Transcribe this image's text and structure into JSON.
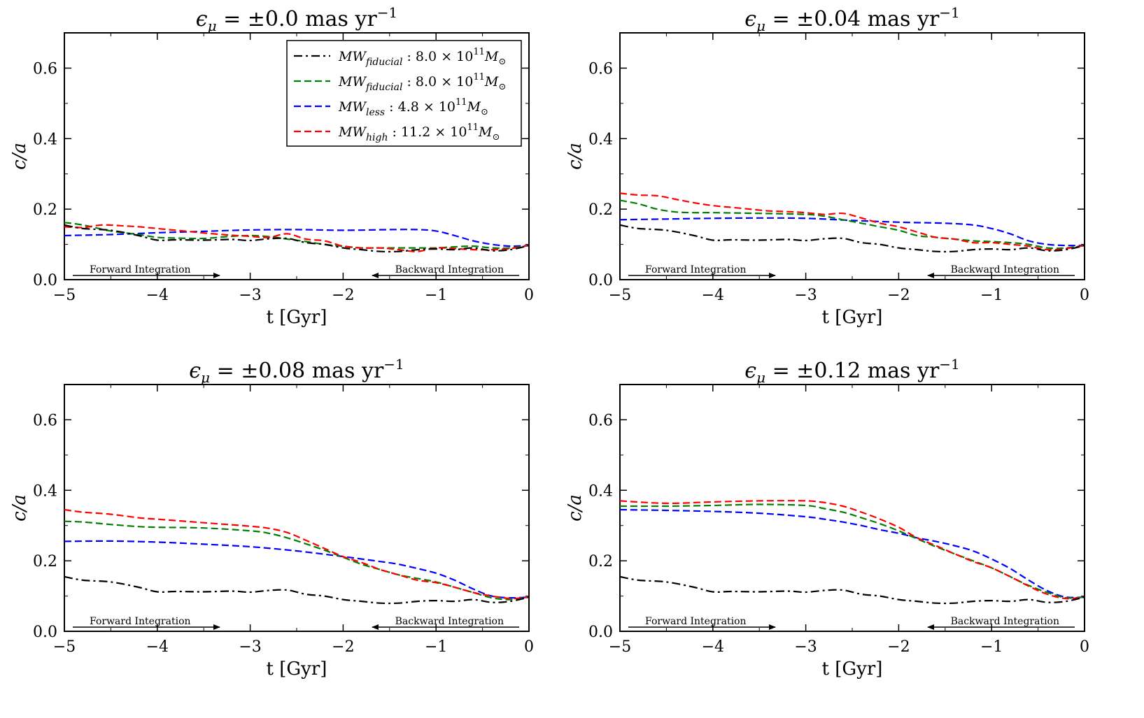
{
  "figure": {
    "arrows": {
      "forward": "Forward Integration",
      "backward": "Backward Integration"
    },
    "legend": [
      {
        "name": "MW",
        "sub": "fiducial",
        "rest": " : 8.0 × 10",
        "exp": "11",
        "tail": "M",
        "sun": "⊙",
        "color": "#000000",
        "style": "dashdot"
      },
      {
        "name": "MW",
        "sub": "fiducial",
        "rest": " : 8.0 × 10",
        "exp": "11",
        "tail": "M",
        "sun": "⊙",
        "color": "#008000",
        "style": "dashed"
      },
      {
        "name": "MW",
        "sub": "less",
        "rest": " : 4.8 × 10",
        "exp": "11",
        "tail": "M",
        "sun": "⊙",
        "color": "#0000ff",
        "style": "dashed"
      },
      {
        "name": "MW",
        "sub": "high",
        "rest": " : 11.2 × 10",
        "exp": "11",
        "tail": "M",
        "sun": "⊙",
        "color": "#ff0000",
        "style": "dashed"
      }
    ]
  },
  "chart_data": [
    {
      "type": "line",
      "title": {
        "prefix": "ϵ",
        "sub": "μ",
        "value": " = ±0.0 mas yr",
        "exp": "−1"
      },
      "xlabel": "t [Gyr]",
      "ylabel": "c/a",
      "xlim": [
        -5,
        0
      ],
      "ylim": [
        0,
        0.7
      ],
      "xticks": [
        "−5",
        "−4",
        "−3",
        "−2",
        "−1",
        "0"
      ],
      "yticks": [
        "0.0",
        "0.2",
        "0.4",
        "0.6"
      ],
      "legend": "top-right",
      "series": [
        {
          "color": "#000000",
          "style": "dashdot",
          "x": [
            -5,
            -4.8,
            -4.5,
            -4.2,
            -4,
            -3.8,
            -3.5,
            -3.2,
            -3,
            -2.8,
            -2.6,
            -2.4,
            -2.2,
            -2,
            -1.8,
            -1.6,
            -1.4,
            -1.2,
            -1,
            -0.8,
            -0.6,
            -0.4,
            -0.2,
            0
          ],
          "y": [
            0.155,
            0.145,
            0.14,
            0.125,
            0.112,
            0.113,
            0.112,
            0.114,
            0.111,
            0.116,
            0.117,
            0.105,
            0.1,
            0.09,
            0.085,
            0.08,
            0.08,
            0.085,
            0.087,
            0.085,
            0.09,
            0.082,
            0.085,
            0.097
          ]
        },
        {
          "color": "#008000",
          "style": "dashed",
          "x": [
            -5,
            -4.8,
            -4.5,
            -4.2,
            -4,
            -3.8,
            -3.5,
            -3.2,
            -3,
            -2.8,
            -2.6,
            -2.4,
            -2.2,
            -2,
            -1.8,
            -1.6,
            -1.4,
            -1.2,
            -1,
            -0.8,
            -0.6,
            -0.4,
            -0.2,
            0
          ],
          "y": [
            0.162,
            0.155,
            0.138,
            0.128,
            0.12,
            0.118,
            0.117,
            0.123,
            0.125,
            0.122,
            0.115,
            0.108,
            0.1,
            0.095,
            0.09,
            0.09,
            0.09,
            0.09,
            0.09,
            0.093,
            0.095,
            0.09,
            0.09,
            0.097
          ]
        },
        {
          "color": "#0000ff",
          "style": "dashed",
          "x": [
            -5,
            -4.5,
            -4,
            -3.5,
            -3,
            -2.5,
            -2,
            -1.5,
            -1.2,
            -1,
            -0.8,
            -0.6,
            -0.4,
            -0.2,
            0
          ],
          "y": [
            0.125,
            0.128,
            0.133,
            0.137,
            0.141,
            0.142,
            0.14,
            0.142,
            0.142,
            0.138,
            0.125,
            0.11,
            0.1,
            0.095,
            0.097
          ]
        },
        {
          "color": "#ff0000",
          "style": "dashed",
          "x": [
            -5,
            -4.8,
            -4.6,
            -4.4,
            -4.2,
            -4,
            -3.8,
            -3.6,
            -3.4,
            -3.2,
            -3,
            -2.8,
            -2.6,
            -2.4,
            -2.2,
            -2,
            -1.8,
            -1.6,
            -1.4,
            -1.2,
            -1,
            -0.8,
            -0.6,
            -0.4,
            -0.2,
            0
          ],
          "y": [
            0.15,
            0.148,
            0.155,
            0.153,
            0.15,
            0.145,
            0.14,
            0.135,
            0.13,
            0.126,
            0.123,
            0.12,
            0.13,
            0.115,
            0.11,
            0.095,
            0.09,
            0.09,
            0.085,
            0.08,
            0.09,
            0.088,
            0.085,
            0.085,
            0.088,
            0.097
          ]
        }
      ]
    },
    {
      "type": "line",
      "title": {
        "prefix": "ϵ",
        "sub": "μ",
        "value": " = ±0.04 mas yr",
        "exp": "−1"
      },
      "xlabel": "t [Gyr]",
      "ylabel": "c/a",
      "xlim": [
        -5,
        0
      ],
      "ylim": [
        0,
        0.7
      ],
      "xticks": [
        "−5",
        "−4",
        "−3",
        "−2",
        "−1",
        "0"
      ],
      "yticks": [
        "0.0",
        "0.2",
        "0.4",
        "0.6"
      ],
      "series": [
        {
          "color": "#000000",
          "style": "dashdot",
          "x": [
            -5,
            -4.8,
            -4.5,
            -4.2,
            -4,
            -3.8,
            -3.5,
            -3.2,
            -3,
            -2.8,
            -2.6,
            -2.4,
            -2.2,
            -2,
            -1.8,
            -1.6,
            -1.4,
            -1.2,
            -1,
            -0.8,
            -0.6,
            -0.4,
            -0.2,
            0
          ],
          "y": [
            0.155,
            0.145,
            0.14,
            0.125,
            0.112,
            0.113,
            0.112,
            0.114,
            0.111,
            0.116,
            0.117,
            0.105,
            0.1,
            0.09,
            0.085,
            0.08,
            0.08,
            0.085,
            0.087,
            0.085,
            0.09,
            0.082,
            0.085,
            0.097
          ]
        },
        {
          "color": "#008000",
          "style": "dashed",
          "x": [
            -5,
            -4.8,
            -4.6,
            -4.4,
            -4.2,
            -4,
            -3.5,
            -3,
            -2.8,
            -2.6,
            -2.4,
            -2.2,
            -2,
            -1.8,
            -1.6,
            -1.4,
            -1.2,
            -1,
            -0.8,
            -0.6,
            -0.4,
            -0.2,
            0
          ],
          "y": [
            0.225,
            0.215,
            0.2,
            0.192,
            0.19,
            0.19,
            0.188,
            0.185,
            0.18,
            0.17,
            0.16,
            0.15,
            0.14,
            0.125,
            0.12,
            0.115,
            0.11,
            0.108,
            0.105,
            0.1,
            0.09,
            0.09,
            0.097
          ]
        },
        {
          "color": "#0000ff",
          "style": "dashed",
          "x": [
            -5,
            -4.5,
            -4,
            -3.5,
            -3,
            -2.5,
            -2,
            -1.5,
            -1.2,
            -1,
            -0.8,
            -0.6,
            -0.4,
            -0.2,
            0
          ],
          "y": [
            0.17,
            0.172,
            0.174,
            0.175,
            0.174,
            0.168,
            0.163,
            0.16,
            0.155,
            0.145,
            0.13,
            0.11,
            0.1,
            0.097,
            0.097
          ]
        },
        {
          "color": "#ff0000",
          "style": "dashed",
          "x": [
            -5,
            -4.8,
            -4.6,
            -4.4,
            -4.2,
            -4,
            -3.8,
            -3.6,
            -3.4,
            -3.2,
            -3,
            -2.8,
            -2.6,
            -2.4,
            -2.2,
            -2,
            -1.8,
            -1.6,
            -1.4,
            -1.2,
            -1,
            -0.8,
            -0.6,
            -0.4,
            -0.2,
            0
          ],
          "y": [
            0.245,
            0.24,
            0.238,
            0.228,
            0.218,
            0.21,
            0.205,
            0.2,
            0.195,
            0.193,
            0.19,
            0.185,
            0.188,
            0.175,
            0.16,
            0.15,
            0.135,
            0.12,
            0.115,
            0.105,
            0.105,
            0.1,
            0.095,
            0.085,
            0.088,
            0.097
          ]
        }
      ]
    },
    {
      "type": "line",
      "title": {
        "prefix": "ϵ",
        "sub": "μ",
        "value": " = ±0.08 mas yr",
        "exp": "−1"
      },
      "xlabel": "t [Gyr]",
      "ylabel": "c/a",
      "xlim": [
        -5,
        0
      ],
      "ylim": [
        0,
        0.7
      ],
      "xticks": [
        "−5",
        "−4",
        "−3",
        "−2",
        "−1",
        "0"
      ],
      "yticks": [
        "0.0",
        "0.2",
        "0.4",
        "0.6"
      ],
      "series": [
        {
          "color": "#000000",
          "style": "dashdot",
          "x": [
            -5,
            -4.8,
            -4.5,
            -4.2,
            -4,
            -3.8,
            -3.5,
            -3.2,
            -3,
            -2.8,
            -2.6,
            -2.4,
            -2.2,
            -2,
            -1.8,
            -1.6,
            -1.4,
            -1.2,
            -1,
            -0.8,
            -0.6,
            -0.4,
            -0.2,
            0
          ],
          "y": [
            0.155,
            0.145,
            0.14,
            0.125,
            0.112,
            0.113,
            0.112,
            0.114,
            0.111,
            0.116,
            0.117,
            0.105,
            0.1,
            0.09,
            0.085,
            0.08,
            0.08,
            0.085,
            0.087,
            0.085,
            0.09,
            0.082,
            0.085,
            0.097
          ]
        },
        {
          "color": "#008000",
          "style": "dashed",
          "x": [
            -5,
            -4.8,
            -4.5,
            -4.2,
            -4,
            -3.5,
            -3,
            -2.8,
            -2.6,
            -2.4,
            -2.2,
            -2,
            -1.8,
            -1.6,
            -1.4,
            -1.2,
            -1,
            -0.8,
            -0.6,
            -0.4,
            -0.2,
            0
          ],
          "y": [
            0.312,
            0.31,
            0.303,
            0.297,
            0.295,
            0.293,
            0.285,
            0.278,
            0.265,
            0.248,
            0.23,
            0.21,
            0.19,
            0.175,
            0.16,
            0.15,
            0.14,
            0.125,
            0.11,
            0.095,
            0.09,
            0.097
          ]
        },
        {
          "color": "#0000ff",
          "style": "dashed",
          "x": [
            -5,
            -4.5,
            -4,
            -3.5,
            -3,
            -2.5,
            -2,
            -1.8,
            -1.6,
            -1.4,
            -1.2,
            -1,
            -0.8,
            -0.6,
            -0.4,
            -0.2,
            0
          ],
          "y": [
            0.255,
            0.256,
            0.253,
            0.247,
            0.24,
            0.228,
            0.212,
            0.205,
            0.198,
            0.19,
            0.178,
            0.165,
            0.145,
            0.12,
            0.1,
            0.095,
            0.097
          ]
        },
        {
          "color": "#ff0000",
          "style": "dashed",
          "x": [
            -5,
            -4.8,
            -4.5,
            -4.2,
            -4,
            -3.5,
            -3,
            -2.8,
            -2.6,
            -2.4,
            -2.2,
            -2,
            -1.8,
            -1.6,
            -1.4,
            -1.2,
            -1,
            -0.8,
            -0.6,
            -0.4,
            -0.2,
            0
          ],
          "y": [
            0.345,
            0.338,
            0.332,
            0.322,
            0.318,
            0.308,
            0.298,
            0.292,
            0.28,
            0.258,
            0.235,
            0.212,
            0.195,
            0.175,
            0.16,
            0.145,
            0.138,
            0.125,
            0.11,
            0.1,
            0.093,
            0.097
          ]
        }
      ]
    },
    {
      "type": "line",
      "title": {
        "prefix": "ϵ",
        "sub": "μ",
        "value": " = ±0.12 mas yr",
        "exp": "−1"
      },
      "xlabel": "t [Gyr]",
      "ylabel": "c/a",
      "xlim": [
        -5,
        0
      ],
      "ylim": [
        0,
        0.7
      ],
      "xticks": [
        "−5",
        "−4",
        "−3",
        "−2",
        "−1",
        "0"
      ],
      "yticks": [
        "0.0",
        "0.2",
        "0.4",
        "0.6"
      ],
      "series": [
        {
          "color": "#000000",
          "style": "dashdot",
          "x": [
            -5,
            -4.8,
            -4.5,
            -4.2,
            -4,
            -3.8,
            -3.5,
            -3.2,
            -3,
            -2.8,
            -2.6,
            -2.4,
            -2.2,
            -2,
            -1.8,
            -1.6,
            -1.4,
            -1.2,
            -1,
            -0.8,
            -0.6,
            -0.4,
            -0.2,
            0
          ],
          "y": [
            0.155,
            0.145,
            0.14,
            0.125,
            0.112,
            0.113,
            0.112,
            0.114,
            0.111,
            0.116,
            0.117,
            0.105,
            0.1,
            0.09,
            0.085,
            0.08,
            0.08,
            0.085,
            0.087,
            0.085,
            0.09,
            0.082,
            0.085,
            0.097
          ]
        },
        {
          "color": "#008000",
          "style": "dashed",
          "x": [
            -5,
            -4.5,
            -4,
            -3.5,
            -3,
            -2.8,
            -2.6,
            -2.4,
            -2.2,
            -2,
            -1.8,
            -1.6,
            -1.4,
            -1.2,
            -1,
            -0.8,
            -0.6,
            -0.4,
            -0.2,
            0
          ],
          "y": [
            0.355,
            0.355,
            0.357,
            0.36,
            0.357,
            0.348,
            0.338,
            0.322,
            0.305,
            0.285,
            0.262,
            0.24,
            0.22,
            0.2,
            0.18,
            0.155,
            0.13,
            0.11,
            0.095,
            0.097
          ]
        },
        {
          "color": "#0000ff",
          "style": "dashed",
          "x": [
            -5,
            -4.5,
            -4,
            -3.5,
            -3,
            -2.8,
            -2.6,
            -2.4,
            -2.2,
            -2,
            -1.8,
            -1.6,
            -1.4,
            -1.2,
            -1,
            -0.8,
            -0.6,
            -0.4,
            -0.2,
            0
          ],
          "y": [
            0.345,
            0.343,
            0.34,
            0.335,
            0.325,
            0.318,
            0.31,
            0.3,
            0.288,
            0.278,
            0.265,
            0.255,
            0.243,
            0.228,
            0.205,
            0.178,
            0.145,
            0.115,
            0.097,
            0.097
          ]
        },
        {
          "color": "#ff0000",
          "style": "dashed",
          "x": [
            -5,
            -4.5,
            -4,
            -3.5,
            -3,
            -2.8,
            -2.6,
            -2.4,
            -2.2,
            -2,
            -1.8,
            -1.6,
            -1.4,
            -1.2,
            -1,
            -0.8,
            -0.6,
            -0.4,
            -0.2,
            0
          ],
          "y": [
            0.37,
            0.363,
            0.367,
            0.37,
            0.37,
            0.365,
            0.355,
            0.338,
            0.318,
            0.295,
            0.265,
            0.243,
            0.22,
            0.198,
            0.18,
            0.155,
            0.128,
            0.105,
            0.093,
            0.097
          ]
        }
      ]
    }
  ]
}
